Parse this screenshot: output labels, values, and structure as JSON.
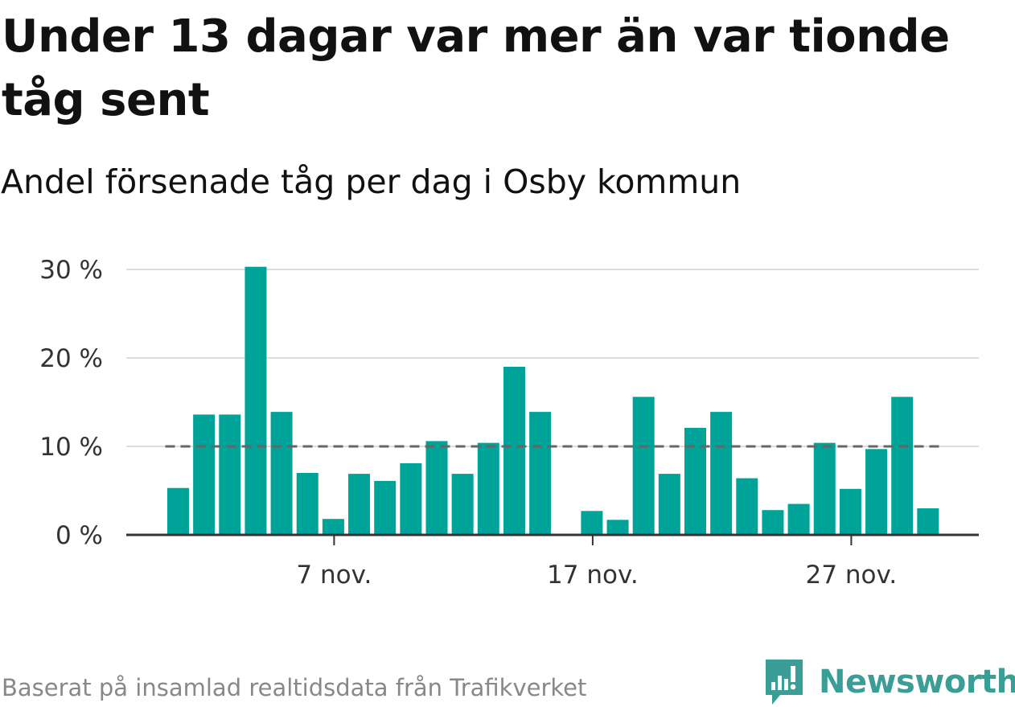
{
  "title": "Under 13 dagar var mer än var tionde tåg sent",
  "subtitle": "Andel försenade tåg per dag i Osby kommun",
  "footer": "Baserat på insamlad realtidsdata från Trafikverket",
  "brand": {
    "name": "Newsworthy",
    "icon": "newsworthy-chart-bubble-icon",
    "color": "#3a9e96"
  },
  "colors": {
    "bar": "#00a398",
    "reference_line": "#666666",
    "grid": "#dddddd",
    "axis": "#333333"
  },
  "chart_data": {
    "type": "bar",
    "x_start_day": 1,
    "x_end_day": 30,
    "x_ticks": [
      {
        "day": 7,
        "label": "7 nov."
      },
      {
        "day": 17,
        "label": "17 nov."
      },
      {
        "day": 27,
        "label": "27 nov."
      }
    ],
    "y_ticks": [
      {
        "value": 0,
        "label": "0 %"
      },
      {
        "value": 10,
        "label": "10 %"
      },
      {
        "value": 20,
        "label": "20 %"
      },
      {
        "value": 30,
        "label": "30 %"
      }
    ],
    "ylim": [
      0,
      30
    ],
    "reference_line": 10,
    "series": [
      {
        "values": [
          5.3,
          13.6,
          13.6,
          30.3,
          13.9,
          7.0,
          1.8,
          6.9,
          6.1,
          8.1,
          10.6,
          6.9,
          10.4,
          19.0,
          13.9,
          null,
          2.7,
          1.7,
          15.6,
          6.9,
          12.1,
          13.9,
          6.4,
          2.8,
          3.5,
          10.4,
          5.2,
          9.7,
          15.6,
          3.0
        ]
      }
    ]
  }
}
